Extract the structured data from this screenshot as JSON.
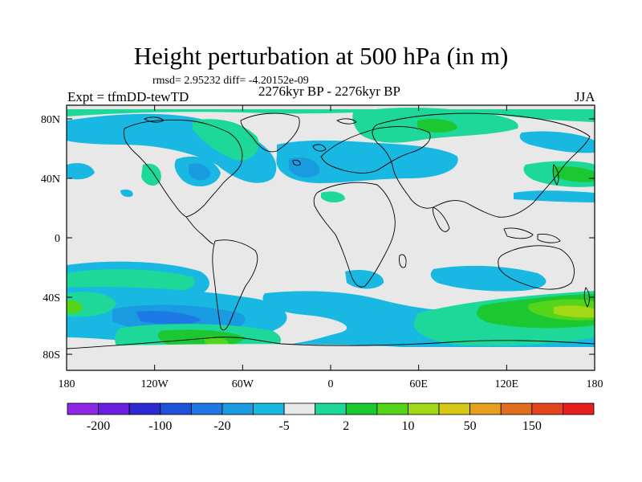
{
  "title": "Height perturbation at 500 hPa (in m)",
  "stats": "rmsd= 2.95232 diff= -4.20152e-09",
  "expt": "Expt = tfmDD-tewTD",
  "period": "2276kyr BP - 2276kyr BP",
  "season": "JJA",
  "lat_labels": [
    "80N",
    "40N",
    "0",
    "40S",
    "80S"
  ],
  "lon_labels": [
    "180",
    "120W",
    "60W",
    "0",
    "60E",
    "120E",
    "180"
  ],
  "colorbar_labels": [
    "-200",
    "-100",
    "-20",
    "-5",
    "2",
    "10",
    "50",
    "150"
  ],
  "colorbar_colors": [
    "#8f28e6",
    "#6a1fe0",
    "#2d2ad2",
    "#1e52db",
    "#1e78e6",
    "#1a9ae0",
    "#18b8e3",
    "#e8e8e8",
    "#1ed89a",
    "#1cc832",
    "#55d51a",
    "#a2d816",
    "#d8c816",
    "#e6a01e",
    "#e06e1e",
    "#e3461e",
    "#e61e1e"
  ],
  "colors": {
    "land_neutral": "#e8e8e8",
    "coast": "#000000"
  }
}
